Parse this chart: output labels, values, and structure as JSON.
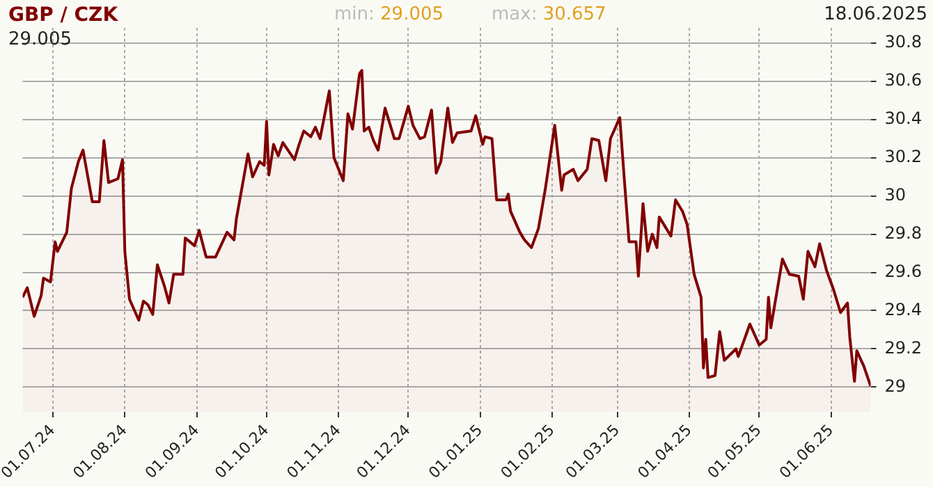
{
  "chart_data": {
    "type": "area",
    "title": "GBP / CZK",
    "annotations": [
      "29.005",
      "min: 29.005",
      "max: 30.657",
      "18.06.2025"
    ],
    "x": [
      "2024-06-18",
      "2024-06-20",
      "2024-06-23",
      "2024-06-26",
      "2024-06-27",
      "2024-06-30",
      "2024-07-02",
      "2024-07-03",
      "2024-07-07",
      "2024-07-09",
      "2024-07-12",
      "2024-07-14",
      "2024-07-18",
      "2024-07-21",
      "2024-07-23",
      "2024-07-25",
      "2024-07-29",
      "2024-07-31",
      "2024-08-01",
      "2024-08-03",
      "2024-08-07",
      "2024-08-09",
      "2024-08-11",
      "2024-08-13",
      "2024-08-15",
      "2024-08-18",
      "2024-08-20",
      "2024-08-22",
      "2024-08-26",
      "2024-08-27",
      "2024-08-31",
      "2024-09-02",
      "2024-09-05",
      "2024-09-09",
      "2024-09-14",
      "2024-09-17",
      "2024-09-18",
      "2024-09-23",
      "2024-09-25",
      "2024-09-28",
      "2024-09-30",
      "2024-10-01",
      "2024-10-02",
      "2024-10-04",
      "2024-10-06",
      "2024-10-08",
      "2024-10-13",
      "2024-10-15",
      "2024-10-17",
      "2024-10-20",
      "2024-10-22",
      "2024-10-24",
      "2024-10-28",
      "2024-10-30",
      "2024-11-03",
      "2024-11-05",
      "2024-11-07",
      "2024-11-10",
      "2024-11-11",
      "2024-11-12",
      "2024-11-14",
      "2024-11-16",
      "2024-11-18",
      "2024-11-21",
      "2024-11-25",
      "2024-11-27",
      "2024-12-01",
      "2024-12-03",
      "2024-12-06",
      "2024-12-08",
      "2024-12-11",
      "2024-12-13",
      "2024-12-15",
      "2024-12-18",
      "2024-12-20",
      "2024-12-22",
      "2024-12-28",
      "2024-12-30",
      "2025-01-02",
      "2025-01-03",
      "2025-01-06",
      "2025-01-08",
      "2025-01-12",
      "2025-01-13",
      "2025-01-14",
      "2025-01-18",
      "2025-01-20",
      "2025-01-23",
      "2025-01-26",
      "2025-01-29",
      "2025-02-02",
      "2025-02-05",
      "2025-02-06",
      "2025-02-10",
      "2025-02-12",
      "2025-02-16",
      "2025-02-18",
      "2025-02-21",
      "2025-02-24",
      "2025-02-26",
      "2025-03-02",
      "2025-03-04",
      "2025-03-06",
      "2025-03-09",
      "2025-03-10",
      "2025-03-12",
      "2025-03-14",
      "2025-03-16",
      "2025-03-18",
      "2025-03-19",
      "2025-03-24",
      "2025-03-26",
      "2025-03-29",
      "2025-03-31",
      "2025-04-03",
      "2025-04-06",
      "2025-04-07",
      "2025-04-08",
      "2025-04-09",
      "2025-04-12",
      "2025-04-14",
      "2025-04-16",
      "2025-04-21",
      "2025-04-22",
      "2025-04-27",
      "2025-05-01",
      "2025-05-04",
      "2025-05-05",
      "2025-05-06",
      "2025-05-11",
      "2025-05-14",
      "2025-05-18",
      "2025-05-20",
      "2025-05-22",
      "2025-05-25",
      "2025-05-27",
      "2025-05-30",
      "2025-06-02",
      "2025-06-03",
      "2025-06-05",
      "2025-06-08",
      "2025-06-09",
      "2025-06-11",
      "2025-06-12",
      "2025-06-15",
      "2025-06-18"
    ],
    "series": [
      {
        "color": "#800000",
        "values": [
          29.47,
          29.52,
          29.37,
          29.48,
          29.57,
          29.55,
          29.76,
          29.71,
          29.81,
          30.04,
          30.18,
          30.24,
          29.97,
          29.97,
          30.29,
          30.07,
          30.09,
          30.19,
          29.71,
          29.46,
          29.35,
          29.45,
          29.43,
          29.38,
          29.64,
          29.53,
          29.44,
          29.59,
          29.59,
          29.78,
          29.74,
          29.82,
          29.68,
          29.68,
          29.81,
          29.77,
          29.88,
          30.22,
          30.1,
          30.18,
          30.16,
          30.39,
          30.11,
          30.27,
          30.21,
          30.28,
          30.19,
          30.27,
          30.34,
          30.31,
          30.36,
          30.3,
          30.55,
          30.2,
          30.08,
          30.43,
          30.35,
          30.64,
          30.657,
          30.34,
          30.36,
          30.29,
          30.24,
          30.46,
          30.3,
          30.3,
          30.47,
          30.37,
          30.3,
          30.31,
          30.45,
          30.12,
          30.18,
          30.46,
          30.28,
          30.33,
          30.34,
          30.42,
          30.27,
          30.31,
          30.3,
          29.98,
          29.98,
          30.01,
          29.92,
          29.81,
          29.77,
          29.73,
          29.83,
          30.04,
          30.37,
          30.03,
          30.11,
          30.14,
          30.08,
          30.14,
          30.3,
          30.29,
          30.08,
          30.3,
          30.41,
          30.08,
          29.76,
          29.76,
          29.58,
          29.96,
          29.71,
          29.8,
          29.73,
          29.89,
          29.79,
          29.98,
          29.92,
          29.85,
          29.59,
          29.47,
          29.1,
          29.25,
          29.05,
          29.06,
          29.29,
          29.14,
          29.2,
          29.16,
          29.33,
          29.22,
          29.25,
          29.47,
          29.31,
          29.67,
          29.59,
          29.58,
          29.46,
          29.71,
          29.63,
          29.75,
          29.61,
          29.51,
          29.47,
          29.39,
          29.44,
          29.26,
          29.03,
          29.19,
          29.11,
          29.005
        ]
      }
    ],
    "xlim": [
      "2024-06-18",
      "2025-06-18"
    ],
    "xticks": [
      {
        "value": "2024-07-01",
        "label": "01.07.24"
      },
      {
        "value": "2024-08-01",
        "label": "01.08.24"
      },
      {
        "value": "2024-09-01",
        "label": "01.09.24"
      },
      {
        "value": "2024-10-01",
        "label": "01.10.24"
      },
      {
        "value": "2024-11-01",
        "label": "01.11.24"
      },
      {
        "value": "2024-12-01",
        "label": "01.12.24"
      },
      {
        "value": "2025-01-01",
        "label": "01.01.25"
      },
      {
        "value": "2025-02-01",
        "label": "01.02.25"
      },
      {
        "value": "2025-03-01",
        "label": "01.03.25"
      },
      {
        "value": "2025-04-01",
        "label": "01.04.25"
      },
      {
        "value": "2025-05-01",
        "label": "01.05.25"
      },
      {
        "value": "2025-06-01",
        "label": "01.06.25"
      }
    ],
    "ylim": [
      28.87,
      30.88
    ],
    "yticks": [
      29,
      29.2,
      29.4,
      29.6,
      29.8,
      30,
      30.2,
      30.4,
      30.6,
      30.8
    ],
    "grid": true,
    "legend": false,
    "marker": "none",
    "line_style": "solid"
  }
}
